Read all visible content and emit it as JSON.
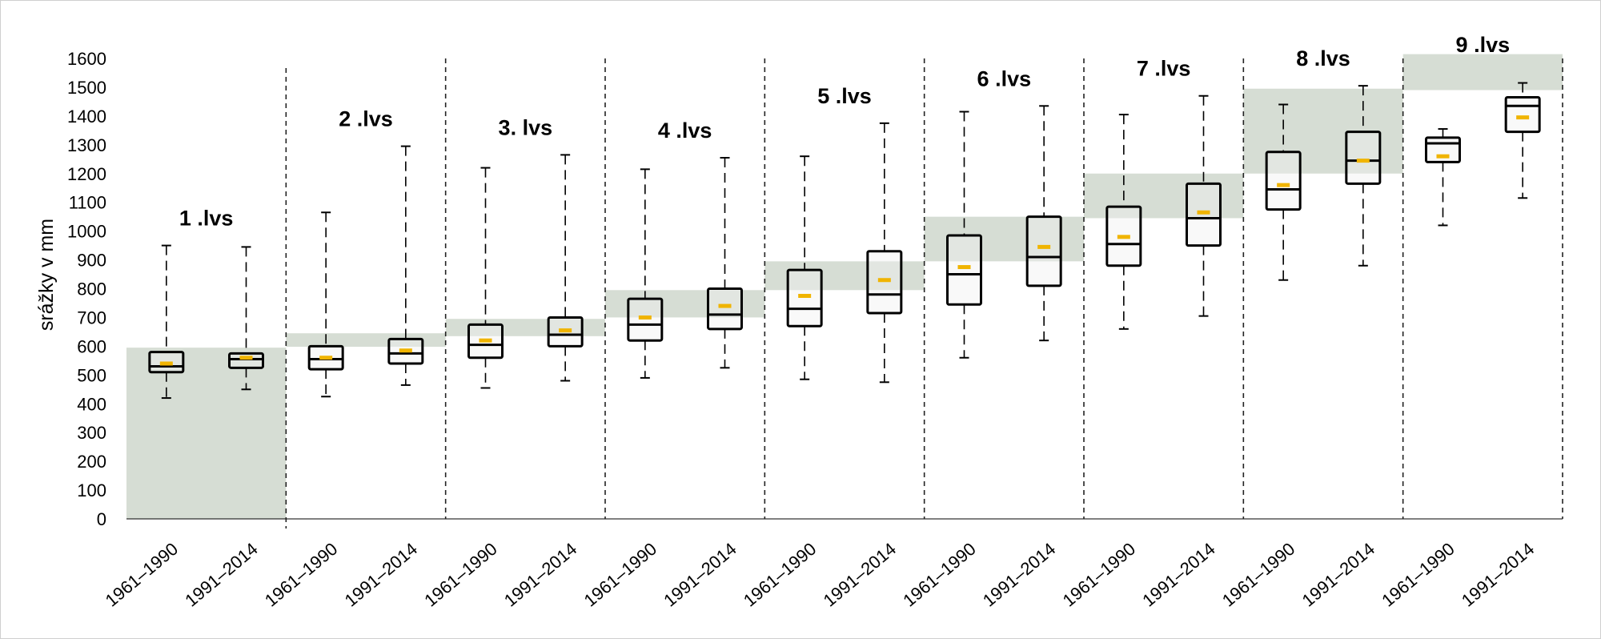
{
  "chart_data": {
    "type": "boxplot",
    "ylabel": "srážky v mm",
    "ylim": [
      0,
      1600
    ],
    "yticks": [
      0,
      100,
      200,
      300,
      400,
      500,
      600,
      700,
      800,
      900,
      1000,
      1100,
      1200,
      1300,
      1400,
      1500,
      1600
    ],
    "colors": {
      "band": "#d6ddd4",
      "mean": "#f0b400",
      "box_fill": "#f2f2f2",
      "line": "#000000"
    },
    "zones": [
      {
        "label": "1 .lvs",
        "band": [
          0,
          595
        ],
        "boxes": [
          {
            "category": "1961–1990",
            "min": 420,
            "q1": 510,
            "median": 530,
            "q3": 580,
            "max": 950,
            "mean": 540
          },
          {
            "category": "1991–2014",
            "min": 450,
            "q1": 525,
            "median": 555,
            "q3": 575,
            "max": 945,
            "mean": 560
          }
        ]
      },
      {
        "label": "2 .lvs",
        "band": [
          598,
          645
        ],
        "boxes": [
          {
            "category": "1961–1990",
            "min": 425,
            "q1": 520,
            "median": 555,
            "q3": 600,
            "max": 1065,
            "mean": 560
          },
          {
            "category": "1991–2014",
            "min": 465,
            "q1": 540,
            "median": 575,
            "q3": 625,
            "max": 1295,
            "mean": 585
          }
        ]
      },
      {
        "label": "3. lvs",
        "band": [
          635,
          695
        ],
        "boxes": [
          {
            "category": "1961–1990",
            "min": 455,
            "q1": 560,
            "median": 605,
            "q3": 675,
            "max": 1220,
            "mean": 620
          },
          {
            "category": "1991–2014",
            "min": 480,
            "q1": 600,
            "median": 640,
            "q3": 700,
            "max": 1265,
            "mean": 655
          }
        ]
      },
      {
        "label": "4 .lvs",
        "band": [
          700,
          795
        ],
        "boxes": [
          {
            "category": "1961–1990",
            "min": 490,
            "q1": 620,
            "median": 675,
            "q3": 765,
            "max": 1215,
            "mean": 700
          },
          {
            "category": "1991–2014",
            "min": 525,
            "q1": 660,
            "median": 710,
            "q3": 800,
            "max": 1255,
            "mean": 740
          }
        ]
      },
      {
        "label": "5 .lvs",
        "band": [
          795,
          895
        ],
        "boxes": [
          {
            "category": "1961–1990",
            "min": 485,
            "q1": 670,
            "median": 730,
            "q3": 865,
            "max": 1260,
            "mean": 775
          },
          {
            "category": "1991–2014",
            "min": 475,
            "q1": 715,
            "median": 780,
            "q3": 930,
            "max": 1375,
            "mean": 830
          }
        ]
      },
      {
        "label": "6 .lvs",
        "band": [
          895,
          1050
        ],
        "boxes": [
          {
            "category": "1961–1990",
            "min": 560,
            "q1": 745,
            "median": 850,
            "q3": 985,
            "max": 1415,
            "mean": 875
          },
          {
            "category": "1991–2014",
            "min": 620,
            "q1": 810,
            "median": 910,
            "q3": 1050,
            "max": 1435,
            "mean": 945
          }
        ]
      },
      {
        "label": "7 .lvs",
        "band": [
          1045,
          1200
        ],
        "boxes": [
          {
            "category": "1961–1990",
            "min": 660,
            "q1": 880,
            "median": 955,
            "q3": 1085,
            "max": 1405,
            "mean": 980
          },
          {
            "category": "1991–2014",
            "min": 705,
            "q1": 950,
            "median": 1045,
            "q3": 1165,
            "max": 1470,
            "mean": 1065
          }
        ]
      },
      {
        "label": "8 .lvs",
        "band": [
          1200,
          1495
        ],
        "boxes": [
          {
            "category": "1961–1990",
            "min": 830,
            "q1": 1075,
            "median": 1145,
            "q3": 1275,
            "max": 1440,
            "mean": 1160
          },
          {
            "category": "1991–2014",
            "min": 880,
            "q1": 1165,
            "median": 1245,
            "q3": 1345,
            "max": 1505,
            "mean": 1245
          }
        ]
      },
      {
        "label": "9 .lvs",
        "band": [
          1490,
          1615
        ],
        "boxes": [
          {
            "category": "1961–1990",
            "min": 1020,
            "q1": 1240,
            "median": 1305,
            "q3": 1325,
            "max": 1355,
            "mean": 1260
          },
          {
            "category": "1991–2014",
            "min": 1115,
            "q1": 1345,
            "median": 1435,
            "q3": 1465,
            "max": 1515,
            "mean": 1395
          }
        ]
      }
    ]
  }
}
